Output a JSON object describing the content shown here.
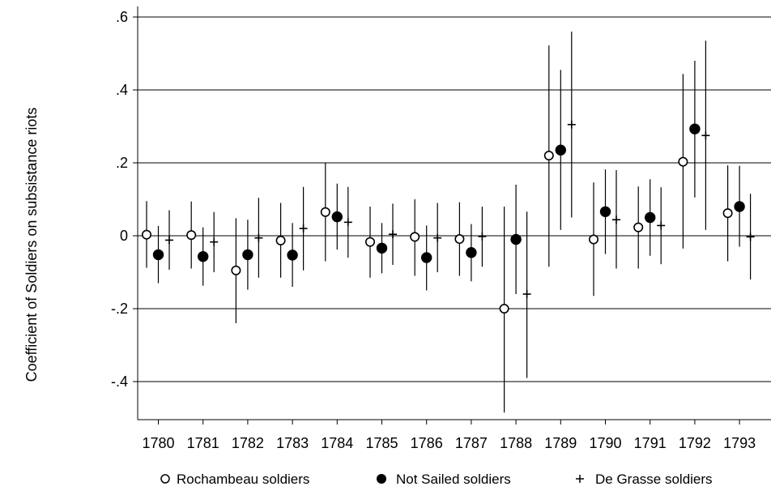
{
  "chart_data": {
    "type": "scatter",
    "subtype": "point-estimates-with-confidence-intervals",
    "ylabel": "Coefficient of Soldiers on subsistance riots",
    "xlabel": "",
    "categories": [
      "1780",
      "1781",
      "1782",
      "1783",
      "1784",
      "1785",
      "1786",
      "1787",
      "1788",
      "1789",
      "1790",
      "1791",
      "1792",
      "1793"
    ],
    "yticks": [
      {
        "value": 0.6,
        "label": ".6"
      },
      {
        "value": 0.4,
        "label": ".4"
      },
      {
        "value": 0.2,
        "label": ".2"
      },
      {
        "value": 0.0,
        "label": "0"
      },
      {
        "value": -0.2,
        "label": "-.2"
      },
      {
        "value": -0.4,
        "label": "-.4"
      }
    ],
    "ylim": [
      -0.51,
      0.63
    ],
    "grid": true,
    "legend_position": "bottom",
    "series": [
      {
        "name": "Rochambeau soldiers",
        "marker": "hollow-circle",
        "values": [
          0.003,
          0.002,
          -0.095,
          -0.013,
          0.065,
          -0.017,
          -0.003,
          -0.009,
          -0.2,
          0.22,
          -0.01,
          0.023,
          0.203,
          0.062
        ],
        "ci_low": [
          -0.088,
          -0.09,
          -0.24,
          -0.115,
          -0.07,
          -0.115,
          -0.11,
          -0.11,
          -0.485,
          -0.085,
          -0.165,
          -0.09,
          -0.035,
          -0.07
        ],
        "ci_high": [
          0.095,
          0.094,
          0.048,
          0.09,
          0.2,
          0.08,
          0.1,
          0.092,
          0.08,
          0.522,
          0.146,
          0.135,
          0.444,
          0.193
        ]
      },
      {
        "name": "Not Sailed soldiers",
        "marker": "filled-circle",
        "values": [
          -0.052,
          -0.057,
          -0.052,
          -0.053,
          0.052,
          -0.034,
          -0.06,
          -0.046,
          -0.01,
          0.235,
          0.066,
          0.05,
          0.293,
          0.08
        ],
        "ci_low": [
          -0.13,
          -0.137,
          -0.148,
          -0.14,
          -0.038,
          -0.103,
          -0.15,
          -0.125,
          -0.16,
          0.016,
          -0.05,
          -0.055,
          0.105,
          -0.03
        ],
        "ci_high": [
          0.027,
          0.023,
          0.044,
          0.035,
          0.143,
          0.035,
          0.028,
          0.032,
          0.14,
          0.455,
          0.182,
          0.155,
          0.48,
          0.192
        ]
      },
      {
        "name": "De Grasse soldiers",
        "marker": "plus",
        "values": [
          -0.012,
          -0.017,
          -0.006,
          0.02,
          0.037,
          0.004,
          -0.006,
          -0.002,
          -0.16,
          0.305,
          0.044,
          0.028,
          0.275,
          -0.003
        ],
        "ci_low": [
          -0.093,
          -0.1,
          -0.115,
          -0.095,
          -0.06,
          -0.08,
          -0.1,
          -0.085,
          -0.39,
          0.05,
          -0.09,
          -0.078,
          0.016,
          -0.12
        ],
        "ci_high": [
          0.07,
          0.065,
          0.104,
          0.134,
          0.134,
          0.088,
          0.09,
          0.08,
          0.066,
          0.56,
          0.18,
          0.133,
          0.535,
          0.115
        ]
      }
    ]
  }
}
